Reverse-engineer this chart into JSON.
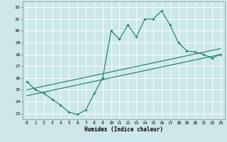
{
  "title": "",
  "xlabel": "Humidex (Indice chaleur)",
  "bg_color": "#cce8ea",
  "grid_color": "#ffffff",
  "line_color": "#1a7a6e",
  "xlim": [
    -0.5,
    23.5
  ],
  "ylim": [
    22.5,
    32.5
  ],
  "xticks": [
    0,
    1,
    2,
    3,
    4,
    5,
    6,
    7,
    8,
    9,
    10,
    11,
    12,
    13,
    14,
    15,
    16,
    17,
    18,
    19,
    20,
    21,
    22,
    23
  ],
  "yticks": [
    23,
    24,
    25,
    26,
    27,
    28,
    29,
    30,
    31,
    32
  ],
  "curve1_x": [
    0,
    1,
    2,
    3,
    4,
    5,
    6,
    7,
    8,
    9,
    10,
    11,
    12,
    13,
    14,
    15,
    16,
    17,
    18,
    19,
    20,
    21,
    22,
    23
  ],
  "curve1_y": [
    25.7,
    25.0,
    24.7,
    24.2,
    23.7,
    23.1,
    22.9,
    23.3,
    24.7,
    26.0,
    30.0,
    29.3,
    30.5,
    29.5,
    31.0,
    31.0,
    31.7,
    30.5,
    29.0,
    28.3,
    28.2,
    28.0,
    27.7,
    28.0
  ],
  "curve2_x": [
    0,
    23
  ],
  "curve2_y": [
    25.0,
    28.5
  ],
  "curve3_x": [
    0,
    23
  ],
  "curve3_y": [
    24.5,
    28.0
  ],
  "lw": 0.8,
  "marker_size": 2.5,
  "xlabel_fontsize": 5.5,
  "tick_fontsize": 4.5
}
